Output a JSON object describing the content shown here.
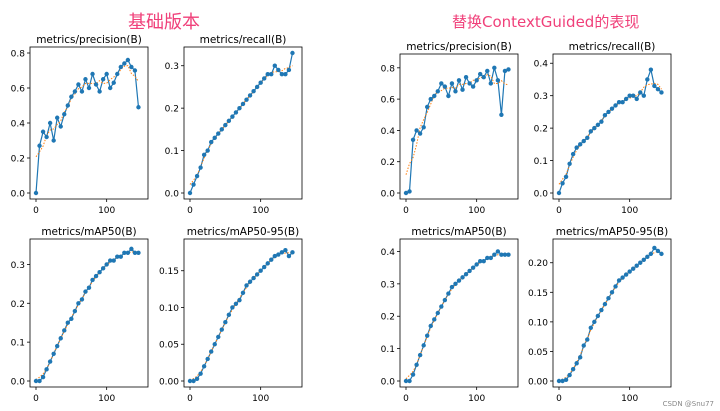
{
  "headings": {
    "left": "基础版本",
    "right": "替换ContextGuided的表现"
  },
  "watermark": "CSDN @Snu77",
  "colors": {
    "heading": "#f0407a",
    "series_line": "#1f77b4",
    "smooth_line": "#ff7f0e"
  },
  "chart_data": [
    {
      "type": "line",
      "title": "metrics/precision(B)",
      "xlabel": "",
      "ylabel": "",
      "xlim": [
        0,
        150
      ],
      "ylim": [
        0,
        0.8
      ],
      "xticks": [
        0,
        100
      ],
      "yticks": [
        0.0,
        0.2,
        0.4,
        0.6,
        0.8
      ],
      "ytick_labels": [
        "0.0",
        "0.2",
        "0.4",
        "0.6",
        "0.8"
      ],
      "series": [
        {
          "x": [
            0,
            5,
            10,
            15,
            20,
            25,
            30,
            35,
            40,
            45,
            50,
            55,
            60,
            65,
            70,
            75,
            80,
            85,
            90,
            95,
            100,
            105,
            110,
            115,
            120,
            125,
            130,
            135,
            140,
            145
          ],
          "values": [
            0.0,
            0.27,
            0.35,
            0.32,
            0.4,
            0.3,
            0.43,
            0.38,
            0.45,
            0.5,
            0.55,
            0.58,
            0.62,
            0.58,
            0.65,
            0.6,
            0.68,
            0.62,
            0.58,
            0.65,
            0.68,
            0.6,
            0.63,
            0.68,
            0.72,
            0.74,
            0.76,
            0.72,
            0.7,
            0.49
          ]
        }
      ]
    },
    {
      "type": "line",
      "title": "metrics/recall(B)",
      "xlabel": "",
      "ylabel": "",
      "xlim": [
        0,
        150
      ],
      "ylim": [
        0,
        0.33
      ],
      "xticks": [
        0,
        100
      ],
      "yticks": [
        0.0,
        0.1,
        0.2,
        0.3
      ],
      "ytick_labels": [
        "0.0",
        "0.1",
        "0.2",
        "0.3"
      ],
      "series": [
        {
          "x": [
            0,
            5,
            10,
            15,
            20,
            25,
            30,
            35,
            40,
            45,
            50,
            55,
            60,
            65,
            70,
            75,
            80,
            85,
            90,
            95,
            100,
            105,
            110,
            115,
            120,
            125,
            130,
            135,
            140,
            145
          ],
          "values": [
            0.0,
            0.02,
            0.04,
            0.06,
            0.09,
            0.1,
            0.12,
            0.13,
            0.14,
            0.15,
            0.16,
            0.17,
            0.18,
            0.19,
            0.2,
            0.21,
            0.22,
            0.23,
            0.24,
            0.25,
            0.26,
            0.27,
            0.28,
            0.28,
            0.3,
            0.29,
            0.28,
            0.28,
            0.29,
            0.33
          ]
        }
      ]
    },
    {
      "type": "line",
      "title": "metrics/mAP50(B)",
      "xlabel": "",
      "ylabel": "",
      "xlim": [
        0,
        150
      ],
      "ylim": [
        0,
        0.35
      ],
      "xticks": [
        0,
        100
      ],
      "yticks": [
        0.0,
        0.1,
        0.2,
        0.3
      ],
      "ytick_labels": [
        "0.0",
        "0.1",
        "0.2",
        "0.3"
      ],
      "series": [
        {
          "x": [
            0,
            5,
            10,
            15,
            20,
            25,
            30,
            35,
            40,
            45,
            50,
            55,
            60,
            65,
            70,
            75,
            80,
            85,
            90,
            95,
            100,
            105,
            110,
            115,
            120,
            125,
            130,
            135,
            140,
            145
          ],
          "values": [
            0.0,
            0.0,
            0.01,
            0.03,
            0.05,
            0.07,
            0.09,
            0.11,
            0.13,
            0.15,
            0.16,
            0.18,
            0.2,
            0.21,
            0.23,
            0.24,
            0.26,
            0.27,
            0.28,
            0.29,
            0.3,
            0.31,
            0.31,
            0.32,
            0.32,
            0.33,
            0.33,
            0.34,
            0.33,
            0.33
          ]
        }
      ]
    },
    {
      "type": "line",
      "title": "metrics/mAP50-95(B)",
      "xlabel": "",
      "ylabel": "",
      "xlim": [
        0,
        150
      ],
      "ylim": [
        0,
        0.185
      ],
      "xticks": [
        0,
        100
      ],
      "yticks": [
        0.0,
        0.05,
        0.1,
        0.15
      ],
      "ytick_labels": [
        "0.00",
        "0.05",
        "0.10",
        "0.15"
      ],
      "series": [
        {
          "x": [
            0,
            5,
            10,
            15,
            20,
            25,
            30,
            35,
            40,
            45,
            50,
            55,
            60,
            65,
            70,
            75,
            80,
            85,
            90,
            95,
            100,
            105,
            110,
            115,
            120,
            125,
            130,
            135,
            140,
            145
          ],
          "values": [
            0.0,
            0.0,
            0.003,
            0.01,
            0.02,
            0.03,
            0.04,
            0.05,
            0.06,
            0.07,
            0.08,
            0.09,
            0.1,
            0.105,
            0.11,
            0.12,
            0.13,
            0.135,
            0.14,
            0.145,
            0.15,
            0.155,
            0.16,
            0.165,
            0.17,
            0.172,
            0.175,
            0.178,
            0.17,
            0.175
          ]
        }
      ]
    },
    {
      "type": "line",
      "title": "metrics/precision(B)",
      "xlabel": "",
      "ylabel": "",
      "xlim": [
        0,
        150
      ],
      "ylim": [
        0,
        0.85
      ],
      "xticks": [
        0,
        100
      ],
      "yticks": [
        0.0,
        0.2,
        0.4,
        0.6,
        0.8
      ],
      "ytick_labels": [
        "0.0",
        "0.2",
        "0.4",
        "0.6",
        "0.8"
      ],
      "series": [
        {
          "x": [
            0,
            5,
            10,
            15,
            20,
            25,
            30,
            35,
            40,
            45,
            50,
            55,
            60,
            65,
            70,
            75,
            80,
            85,
            90,
            95,
            100,
            105,
            110,
            115,
            120,
            125,
            130,
            135,
            140,
            145
          ],
          "values": [
            0.0,
            0.01,
            0.34,
            0.4,
            0.38,
            0.42,
            0.55,
            0.6,
            0.62,
            0.65,
            0.7,
            0.68,
            0.62,
            0.7,
            0.65,
            0.72,
            0.66,
            0.74,
            0.7,
            0.68,
            0.72,
            0.76,
            0.74,
            0.78,
            0.7,
            0.8,
            0.72,
            0.5,
            0.78,
            0.79
          ]
        }
      ]
    },
    {
      "type": "line",
      "title": "metrics/recall(B)",
      "xlabel": "",
      "ylabel": "",
      "xlim": [
        0,
        150
      ],
      "ylim": [
        0,
        0.41
      ],
      "xticks": [
        0,
        100
      ],
      "yticks": [
        0.0,
        0.1,
        0.2,
        0.3,
        0.4
      ],
      "ytick_labels": [
        "0.0",
        "0.1",
        "0.2",
        "0.3",
        "0.4"
      ],
      "series": [
        {
          "x": [
            0,
            5,
            10,
            15,
            20,
            25,
            30,
            35,
            40,
            45,
            50,
            55,
            60,
            65,
            70,
            75,
            80,
            85,
            90,
            95,
            100,
            105,
            110,
            115,
            120,
            125,
            130,
            135,
            140,
            145
          ],
          "values": [
            0.0,
            0.03,
            0.05,
            0.09,
            0.12,
            0.14,
            0.15,
            0.16,
            0.17,
            0.19,
            0.2,
            0.21,
            0.22,
            0.24,
            0.25,
            0.26,
            0.27,
            0.28,
            0.28,
            0.29,
            0.3,
            0.3,
            0.29,
            0.31,
            0.3,
            0.35,
            0.38,
            0.33,
            0.32,
            0.31
          ]
        }
      ]
    },
    {
      "type": "line",
      "title": "metrics/mAP50(B)",
      "xlabel": "",
      "ylabel": "",
      "xlim": [
        0,
        150
      ],
      "ylim": [
        0,
        0.42
      ],
      "xticks": [
        0,
        100
      ],
      "yticks": [
        0.0,
        0.1,
        0.2,
        0.3,
        0.4
      ],
      "ytick_labels": [
        "0.0",
        "0.1",
        "0.2",
        "0.3",
        "0.4"
      ],
      "series": [
        {
          "x": [
            0,
            5,
            10,
            15,
            20,
            25,
            30,
            35,
            40,
            45,
            50,
            55,
            60,
            65,
            70,
            75,
            80,
            85,
            90,
            95,
            100,
            105,
            110,
            115,
            120,
            125,
            130,
            135,
            140,
            145
          ],
          "values": [
            0.0,
            0.0,
            0.02,
            0.05,
            0.08,
            0.11,
            0.14,
            0.17,
            0.19,
            0.21,
            0.23,
            0.25,
            0.27,
            0.29,
            0.3,
            0.31,
            0.32,
            0.33,
            0.34,
            0.35,
            0.36,
            0.37,
            0.37,
            0.38,
            0.38,
            0.39,
            0.4,
            0.39,
            0.39,
            0.39
          ]
        }
      ]
    },
    {
      "type": "line",
      "title": "metrics/mAP50-95(B)",
      "xlabel": "",
      "ylabel": "",
      "xlim": [
        0,
        150
      ],
      "ylim": [
        0,
        0.23
      ],
      "xticks": [
        0,
        100
      ],
      "yticks": [
        0.0,
        0.05,
        0.1,
        0.15,
        0.2
      ],
      "ytick_labels": [
        "0.00",
        "0.05",
        "0.10",
        "0.15",
        "0.20"
      ],
      "series": [
        {
          "x": [
            0,
            5,
            10,
            15,
            20,
            25,
            30,
            35,
            40,
            45,
            50,
            55,
            60,
            65,
            70,
            75,
            80,
            85,
            90,
            95,
            100,
            105,
            110,
            115,
            120,
            125,
            130,
            135,
            140,
            145
          ],
          "values": [
            0.0,
            0.0,
            0.002,
            0.01,
            0.02,
            0.03,
            0.04,
            0.06,
            0.07,
            0.09,
            0.1,
            0.11,
            0.12,
            0.13,
            0.14,
            0.15,
            0.16,
            0.17,
            0.175,
            0.18,
            0.185,
            0.19,
            0.195,
            0.2,
            0.205,
            0.21,
            0.215,
            0.225,
            0.22,
            0.215
          ]
        }
      ]
    }
  ]
}
